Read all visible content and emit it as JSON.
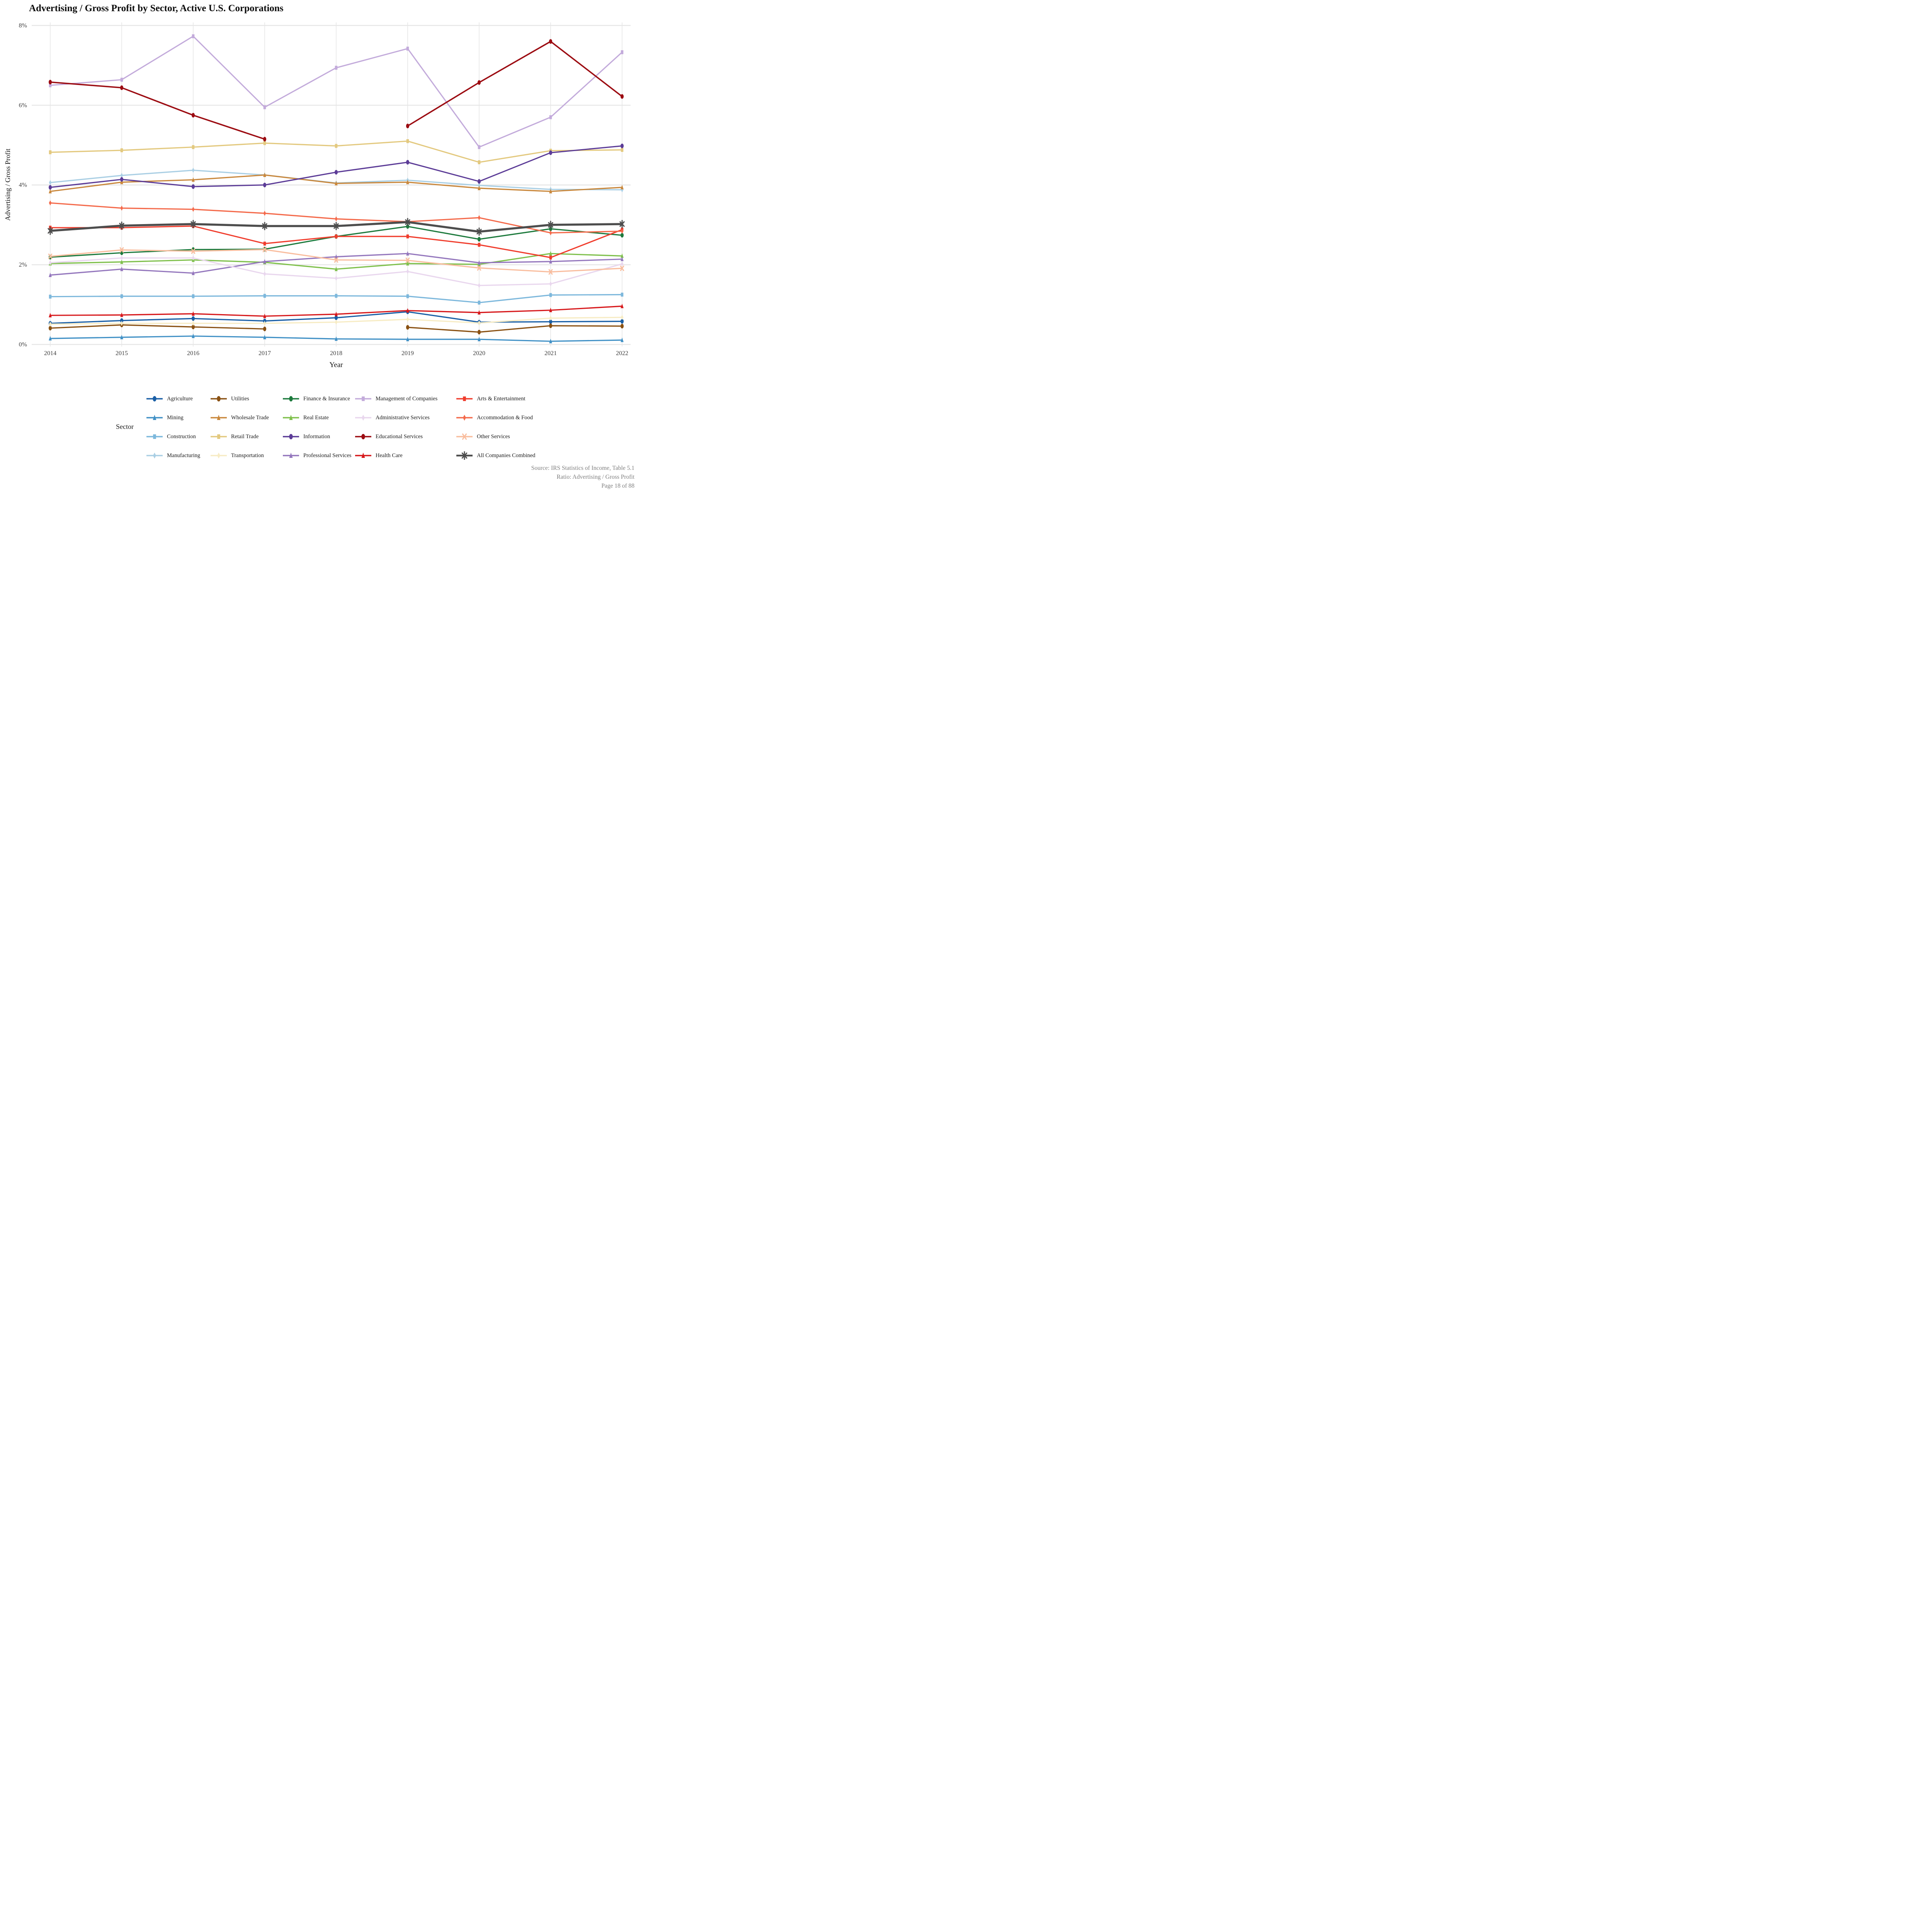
{
  "title": "Advertising / Gross Profit by Sector, Active U.S. Corporations",
  "legend_title": "Sector",
  "footer": [
    "Source: IRS Statistics of Income, Table 5.1",
    "Ratio: Advertising / Gross Profit",
    "Page 18 of 88"
  ],
  "chart_data": {
    "type": "line",
    "title": "Advertising / Gross Profit by Sector, Active U.S. Corporations",
    "xlabel": "Year",
    "ylabel": "Advertising / Gross Profit",
    "x": [
      2014,
      2015,
      2016,
      2017,
      2018,
      2019,
      2020,
      2021,
      2022
    ],
    "x_tick_labels": [
      "2014",
      "2015",
      "2016",
      "2017",
      "2018",
      "2019",
      "2020",
      "2021",
      "2022"
    ],
    "ylim": [
      0,
      8.2
    ],
    "y_ticks": [
      0,
      2,
      4,
      6,
      8
    ],
    "y_tick_labels": [
      "0%",
      "2%",
      "4%",
      "6%",
      "8%"
    ],
    "grid": true,
    "grid_color": "#e6e6e6",
    "background": "#ffffff",
    "legend_position": "bottom",
    "legend_columns": 5,
    "series": [
      {
        "name": "Agriculture",
        "color": "#1a5fa6",
        "marker": "circle",
        "lw": 3.2,
        "values": [
          0.53,
          0.6,
          0.65,
          0.59,
          0.67,
          0.82,
          0.56,
          0.57,
          0.58
        ]
      },
      {
        "name": "Mining",
        "color": "#4191c6",
        "marker": "triangle",
        "lw": 3.2,
        "values": [
          0.15,
          0.18,
          0.21,
          0.18,
          0.14,
          0.13,
          0.13,
          0.08,
          0.11
        ]
      },
      {
        "name": "Construction",
        "color": "#7db8dc",
        "marker": "square",
        "lw": 3.2,
        "values": [
          1.2,
          1.21,
          1.21,
          1.22,
          1.22,
          1.21,
          1.05,
          1.24,
          1.25
        ]
      },
      {
        "name": "Manufacturing",
        "color": "#aacfe4",
        "marker": "diamond",
        "lw": 3.2,
        "values": [
          4.06,
          4.24,
          4.37,
          4.25,
          4.05,
          4.12,
          3.99,
          3.89,
          3.88
        ]
      },
      {
        "name": "Utilities",
        "color": "#8a5113",
        "marker": "circle",
        "lw": 3.2,
        "values": [
          0.41,
          0.49,
          0.44,
          0.39,
          null,
          0.43,
          0.31,
          0.47,
          0.46
        ]
      },
      {
        "name": "Wholesale Trade",
        "color": "#c9883d",
        "marker": "triangle",
        "lw": 3.2,
        "values": [
          3.84,
          4.07,
          4.13,
          4.25,
          4.04,
          4.07,
          3.92,
          3.84,
          3.94
        ]
      },
      {
        "name": "Retail Trade",
        "color": "#e3c97f",
        "marker": "square",
        "lw": 3.2,
        "values": [
          4.82,
          4.87,
          4.95,
          5.05,
          4.98,
          5.1,
          4.57,
          4.86,
          4.88
        ]
      },
      {
        "name": "Transportation",
        "color": "#f7ecc5",
        "marker": "diamond",
        "lw": 3.2,
        "values": [
          0.51,
          0.53,
          0.53,
          0.53,
          0.56,
          0.63,
          0.54,
          0.66,
          0.68
        ]
      },
      {
        "name": "Finance & Insurance",
        "color": "#1d7a3d",
        "marker": "circle",
        "lw": 3.2,
        "values": [
          2.19,
          2.3,
          2.38,
          2.39,
          2.71,
          2.96,
          2.64,
          2.9,
          2.74
        ]
      },
      {
        "name": "Real Estate",
        "color": "#7fc04c",
        "marker": "triangle",
        "lw": 3.2,
        "values": [
          2.03,
          2.07,
          2.12,
          2.06,
          1.89,
          2.03,
          2.01,
          2.28,
          2.22
        ]
      },
      {
        "name": "Information",
        "color": "#5c3c97",
        "marker": "circle",
        "lw": 3.2,
        "values": [
          3.94,
          4.14,
          3.96,
          4.0,
          4.32,
          4.57,
          4.09,
          4.81,
          4.98
        ]
      },
      {
        "name": "Professional Services",
        "color": "#9477bd",
        "marker": "triangle",
        "lw": 3.2,
        "values": [
          1.74,
          1.89,
          1.79,
          2.08,
          2.2,
          2.28,
          2.05,
          2.08,
          2.14
        ]
      },
      {
        "name": "Management of Companies",
        "color": "#c3abdb",
        "marker": "square",
        "lw": 3.2,
        "values": [
          6.5,
          6.64,
          7.73,
          5.95,
          6.94,
          7.42,
          4.95,
          5.7,
          7.33
        ]
      },
      {
        "name": "Administrative Services",
        "color": "#e9d7ee",
        "marker": "diamond",
        "lw": 3.2,
        "values": [
          2.05,
          2.17,
          2.17,
          1.77,
          1.66,
          1.83,
          1.48,
          1.52,
          2.02
        ]
      },
      {
        "name": "Educational Services",
        "color": "#9c0c12",
        "marker": "circle",
        "lw": 3.6,
        "values": [
          6.58,
          6.44,
          5.75,
          5.15,
          null,
          5.48,
          6.57,
          7.6,
          6.22
        ]
      },
      {
        "name": "Health Care",
        "color": "#d7191c",
        "marker": "triangle",
        "lw": 3.2,
        "values": [
          0.73,
          0.74,
          0.77,
          0.71,
          0.76,
          0.85,
          0.8,
          0.86,
          0.96
        ]
      },
      {
        "name": "Arts & Entertainment",
        "color": "#f03d2d",
        "marker": "square",
        "lw": 3.2,
        "values": [
          2.93,
          2.93,
          2.97,
          2.53,
          2.71,
          2.71,
          2.5,
          2.18,
          2.88
        ]
      },
      {
        "name": "Accommodation & Food",
        "color": "#f46a4b",
        "marker": "diamond",
        "lw": 3.2,
        "values": [
          3.55,
          3.42,
          3.39,
          3.29,
          3.15,
          3.08,
          3.18,
          2.8,
          2.84
        ]
      },
      {
        "name": "Other Services",
        "color": "#f9bd9e",
        "marker": "x",
        "lw": 3.2,
        "values": [
          2.21,
          2.37,
          2.34,
          2.38,
          2.12,
          2.11,
          1.92,
          1.82,
          1.91
        ]
      },
      {
        "name": "All Companies Combined",
        "color": "#4d4d4d",
        "marker": "asterisk",
        "lw": 5.5,
        "values": [
          2.85,
          2.98,
          3.02,
          2.97,
          2.97,
          3.07,
          2.83,
          3.0,
          3.02
        ]
      }
    ]
  }
}
